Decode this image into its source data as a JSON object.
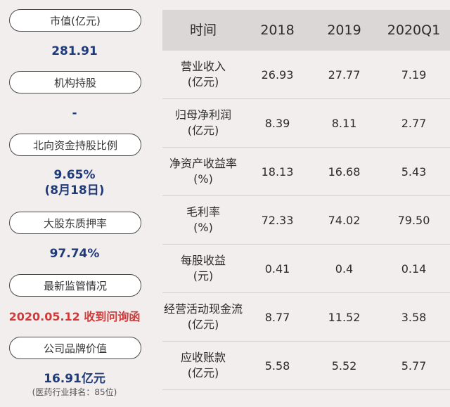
{
  "left": {
    "items": [
      {
        "label": "市值(亿元)",
        "value": "281.91"
      },
      {
        "label": "机构持股",
        "value": "-"
      },
      {
        "label": "北向资金持股比例",
        "value": "9.65%",
        "value2": "(8月18日)"
      },
      {
        "label": "大股东质押率",
        "value": "97.74%"
      },
      {
        "label": "最新监管情况",
        "value": "2020.05.12 收到问询函"
      },
      {
        "label": "公司品牌价值",
        "value": "16.91亿元",
        "note": "(医药行业排名：85位)"
      }
    ]
  },
  "table": {
    "headers": [
      "时间",
      "2018",
      "2019",
      "2020Q1"
    ],
    "rows": [
      {
        "label1": "营业收入",
        "label2": "(亿元)",
        "v": [
          "26.93",
          "27.77",
          "7.19"
        ]
      },
      {
        "label1": "归母净利润",
        "label2": "(亿元)",
        "v": [
          "8.39",
          "8.11",
          "2.77"
        ]
      },
      {
        "label1": "净资产收益率",
        "label2": "(%)",
        "v": [
          "18.13",
          "16.68",
          "5.43"
        ]
      },
      {
        "label1": "毛利率",
        "label2": "(%)",
        "v": [
          "72.33",
          "74.02",
          "79.50"
        ]
      },
      {
        "label1": "每股收益",
        "label2": "(元)",
        "v": [
          "0.41",
          "0.4",
          "0.14"
        ]
      },
      {
        "label1": "经营活动现金流",
        "label2": "(亿元)",
        "v": [
          "8.77",
          "11.52",
          "3.58"
        ]
      },
      {
        "label1": "应收账款",
        "label2": "(亿元)",
        "v": [
          "5.58",
          "5.52",
          "5.77"
        ]
      }
    ]
  }
}
